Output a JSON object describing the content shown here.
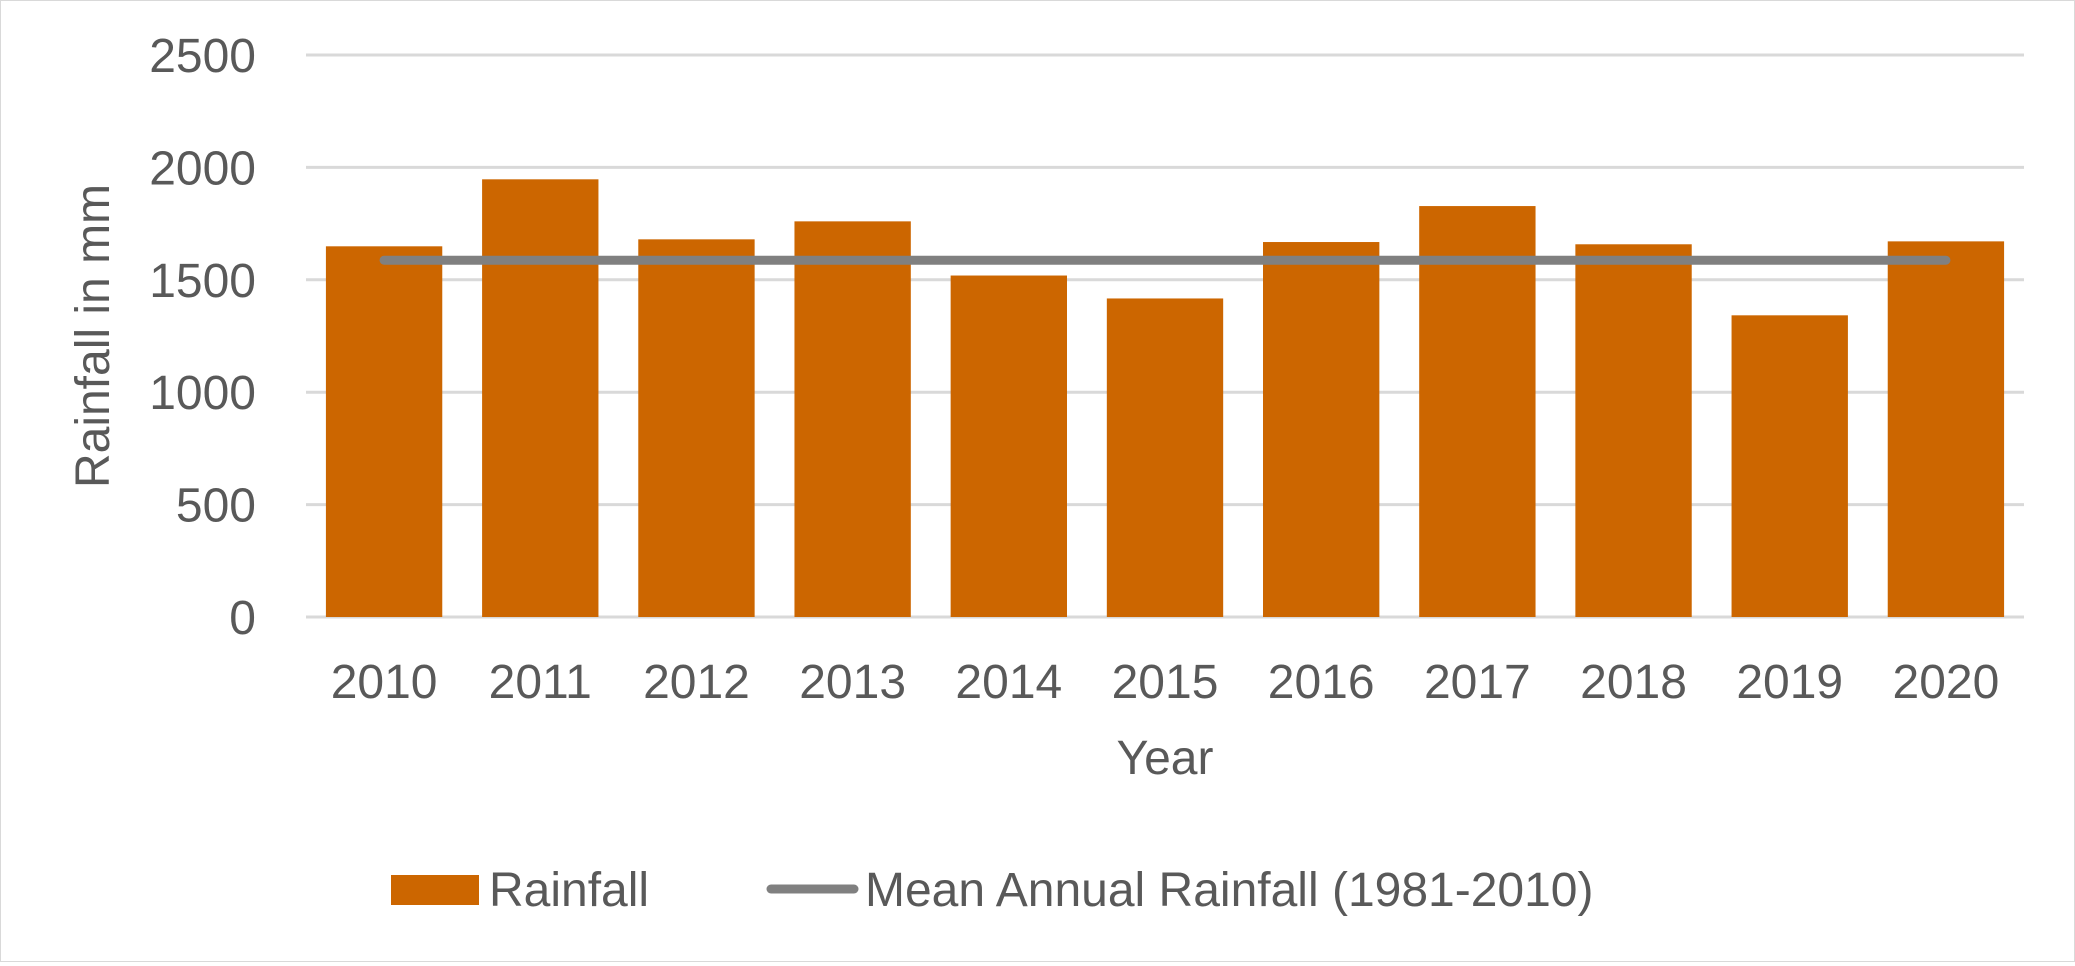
{
  "chart_data": {
    "type": "bar",
    "title": "",
    "xlabel": "Year",
    "ylabel": "Rainfall in mm",
    "ylim": [
      0,
      2500
    ],
    "yticks": [
      0,
      500,
      1000,
      1500,
      2000,
      2500
    ],
    "ytick_labels": [
      "0",
      "500",
      "1000",
      "1500",
      "2000",
      "2500"
    ],
    "grid": true,
    "categories": [
      "2010",
      "2011",
      "2012",
      "2013",
      "2014",
      "2015",
      "2016",
      "2017",
      "2018",
      "2019",
      "2020"
    ],
    "series": [
      {
        "name": "Rainfall",
        "type": "bar",
        "color": "#cc6600",
        "values": [
          1649,
          1947,
          1680,
          1760,
          1519,
          1417,
          1668,
          1828,
          1658,
          1342,
          1671
        ]
      },
      {
        "name": "Mean Annual Rainfall (1981-2010)",
        "type": "line",
        "color": "#808080",
        "values": [
          1587,
          1587,
          1587,
          1587,
          1587,
          1587,
          1587,
          1587,
          1587,
          1587,
          1587
        ]
      }
    ],
    "legend": {
      "position": "bottom",
      "entries": [
        "Rainfall",
        "Mean Annual Rainfall (1981-2010)"
      ]
    }
  }
}
